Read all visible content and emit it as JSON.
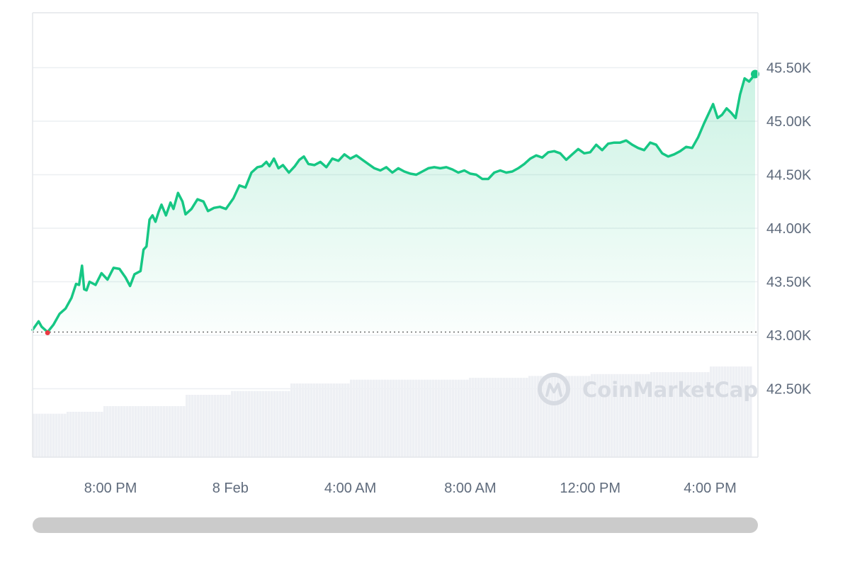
{
  "chart_data": {
    "type": "area",
    "ylim": [
      42000,
      46000
    ],
    "y_ticks": [
      {
        "value": 42500,
        "label": "42.50K"
      },
      {
        "value": 43000,
        "label": "43.00K"
      },
      {
        "value": 43500,
        "label": "43.50K"
      },
      {
        "value": 44000,
        "label": "44.00K"
      },
      {
        "value": 44500,
        "label": "44.50K"
      },
      {
        "value": 45000,
        "label": "45.00K"
      },
      {
        "value": 45500,
        "label": "45.50K"
      }
    ],
    "x_range_hours": [
      -6.6,
      17.5
    ],
    "x_ticks": [
      {
        "value": -4,
        "label": "8:00 PM"
      },
      {
        "value": 0,
        "label": "8 Feb"
      },
      {
        "value": 4,
        "label": "4:00 AM"
      },
      {
        "value": 8,
        "label": "8:00 AM"
      },
      {
        "value": 12,
        "label": "12:00 PM"
      },
      {
        "value": 16,
        "label": "4:00 PM"
      }
    ],
    "reference_value": 43030,
    "line_color": "#16c784",
    "below_reference_color": "#ea3943",
    "series": [
      {
        "x": -6.6,
        "y": 43050
      },
      {
        "x": -6.4,
        "y": 43130
      },
      {
        "x": -6.3,
        "y": 43080
      },
      {
        "x": -6.1,
        "y": 43030
      },
      {
        "x": -5.9,
        "y": 43100
      },
      {
        "x": -5.7,
        "y": 43200
      },
      {
        "x": -5.5,
        "y": 43250
      },
      {
        "x": -5.3,
        "y": 43350
      },
      {
        "x": -5.15,
        "y": 43480
      },
      {
        "x": -5.05,
        "y": 43470
      },
      {
        "x": -4.95,
        "y": 43650
      },
      {
        "x": -4.88,
        "y": 43430
      },
      {
        "x": -4.8,
        "y": 43420
      },
      {
        "x": -4.7,
        "y": 43500
      },
      {
        "x": -4.5,
        "y": 43470
      },
      {
        "x": -4.3,
        "y": 43580
      },
      {
        "x": -4.1,
        "y": 43520
      },
      {
        "x": -3.9,
        "y": 43630
      },
      {
        "x": -3.7,
        "y": 43620
      },
      {
        "x": -3.5,
        "y": 43540
      },
      {
        "x": -3.35,
        "y": 43460
      },
      {
        "x": -3.2,
        "y": 43570
      },
      {
        "x": -3.0,
        "y": 43600
      },
      {
        "x": -2.9,
        "y": 43800
      },
      {
        "x": -2.8,
        "y": 43830
      },
      {
        "x": -2.7,
        "y": 44080
      },
      {
        "x": -2.6,
        "y": 44120
      },
      {
        "x": -2.5,
        "y": 44060
      },
      {
        "x": -2.4,
        "y": 44150
      },
      {
        "x": -2.3,
        "y": 44220
      },
      {
        "x": -2.15,
        "y": 44120
      },
      {
        "x": -2.0,
        "y": 44240
      },
      {
        "x": -1.9,
        "y": 44180
      },
      {
        "x": -1.75,
        "y": 44330
      },
      {
        "x": -1.6,
        "y": 44250
      },
      {
        "x": -1.5,
        "y": 44130
      },
      {
        "x": -1.3,
        "y": 44180
      },
      {
        "x": -1.1,
        "y": 44270
      },
      {
        "x": -0.9,
        "y": 44250
      },
      {
        "x": -0.75,
        "y": 44160
      },
      {
        "x": -0.55,
        "y": 44190
      },
      {
        "x": -0.35,
        "y": 44200
      },
      {
        "x": -0.15,
        "y": 44180
      },
      {
        "x": 0.1,
        "y": 44280
      },
      {
        "x": 0.3,
        "y": 44400
      },
      {
        "x": 0.5,
        "y": 44380
      },
      {
        "x": 0.7,
        "y": 44520
      },
      {
        "x": 0.9,
        "y": 44570
      },
      {
        "x": 1.05,
        "y": 44580
      },
      {
        "x": 1.2,
        "y": 44620
      },
      {
        "x": 1.3,
        "y": 44580
      },
      {
        "x": 1.45,
        "y": 44650
      },
      {
        "x": 1.6,
        "y": 44560
      },
      {
        "x": 1.75,
        "y": 44590
      },
      {
        "x": 1.95,
        "y": 44520
      },
      {
        "x": 2.15,
        "y": 44580
      },
      {
        "x": 2.3,
        "y": 44640
      },
      {
        "x": 2.45,
        "y": 44670
      },
      {
        "x": 2.6,
        "y": 44600
      },
      {
        "x": 2.8,
        "y": 44590
      },
      {
        "x": 3.0,
        "y": 44620
      },
      {
        "x": 3.2,
        "y": 44570
      },
      {
        "x": 3.4,
        "y": 44650
      },
      {
        "x": 3.6,
        "y": 44630
      },
      {
        "x": 3.8,
        "y": 44690
      },
      {
        "x": 4.0,
        "y": 44650
      },
      {
        "x": 4.2,
        "y": 44680
      },
      {
        "x": 4.4,
        "y": 44640
      },
      {
        "x": 4.6,
        "y": 44600
      },
      {
        "x": 4.8,
        "y": 44560
      },
      {
        "x": 5.0,
        "y": 44540
      },
      {
        "x": 5.2,
        "y": 44570
      },
      {
        "x": 5.4,
        "y": 44520
      },
      {
        "x": 5.6,
        "y": 44560
      },
      {
        "x": 5.8,
        "y": 44530
      },
      {
        "x": 6.0,
        "y": 44510
      },
      {
        "x": 6.2,
        "y": 44500
      },
      {
        "x": 6.4,
        "y": 44530
      },
      {
        "x": 6.6,
        "y": 44560
      },
      {
        "x": 6.8,
        "y": 44570
      },
      {
        "x": 7.0,
        "y": 44560
      },
      {
        "x": 7.2,
        "y": 44570
      },
      {
        "x": 7.4,
        "y": 44550
      },
      {
        "x": 7.6,
        "y": 44520
      },
      {
        "x": 7.8,
        "y": 44540
      },
      {
        "x": 8.0,
        "y": 44510
      },
      {
        "x": 8.2,
        "y": 44500
      },
      {
        "x": 8.4,
        "y": 44460
      },
      {
        "x": 8.6,
        "y": 44460
      },
      {
        "x": 8.8,
        "y": 44520
      },
      {
        "x": 9.0,
        "y": 44540
      },
      {
        "x": 9.2,
        "y": 44520
      },
      {
        "x": 9.4,
        "y": 44530
      },
      {
        "x": 9.6,
        "y": 44560
      },
      {
        "x": 9.8,
        "y": 44600
      },
      {
        "x": 10.0,
        "y": 44650
      },
      {
        "x": 10.2,
        "y": 44680
      },
      {
        "x": 10.4,
        "y": 44660
      },
      {
        "x": 10.6,
        "y": 44710
      },
      {
        "x": 10.8,
        "y": 44720
      },
      {
        "x": 11.0,
        "y": 44700
      },
      {
        "x": 11.2,
        "y": 44640
      },
      {
        "x": 11.4,
        "y": 44690
      },
      {
        "x": 11.6,
        "y": 44740
      },
      {
        "x": 11.8,
        "y": 44700
      },
      {
        "x": 12.0,
        "y": 44710
      },
      {
        "x": 12.2,
        "y": 44780
      },
      {
        "x": 12.4,
        "y": 44730
      },
      {
        "x": 12.6,
        "y": 44790
      },
      {
        "x": 12.8,
        "y": 44800
      },
      {
        "x": 13.0,
        "y": 44800
      },
      {
        "x": 13.2,
        "y": 44820
      },
      {
        "x": 13.4,
        "y": 44780
      },
      {
        "x": 13.6,
        "y": 44750
      },
      {
        "x": 13.8,
        "y": 44730
      },
      {
        "x": 14.0,
        "y": 44800
      },
      {
        "x": 14.2,
        "y": 44780
      },
      {
        "x": 14.4,
        "y": 44700
      },
      {
        "x": 14.6,
        "y": 44670
      },
      {
        "x": 14.8,
        "y": 44690
      },
      {
        "x": 15.0,
        "y": 44720
      },
      {
        "x": 15.2,
        "y": 44760
      },
      {
        "x": 15.4,
        "y": 44750
      },
      {
        "x": 15.6,
        "y": 44850
      },
      {
        "x": 15.8,
        "y": 44980
      },
      {
        "x": 16.0,
        "y": 45100
      },
      {
        "x": 16.1,
        "y": 45160
      },
      {
        "x": 16.25,
        "y": 45030
      },
      {
        "x": 16.4,
        "y": 45060
      },
      {
        "x": 16.55,
        "y": 45120
      },
      {
        "x": 16.7,
        "y": 45080
      },
      {
        "x": 16.85,
        "y": 45030
      },
      {
        "x": 17.0,
        "y": 45250
      },
      {
        "x": 17.15,
        "y": 45400
      },
      {
        "x": 17.3,
        "y": 45370
      },
      {
        "x": 17.5,
        "y": 45440
      }
    ],
    "volume": [
      {
        "x": -6.6,
        "v": 0.23
      },
      {
        "x": -5.5,
        "v": 0.24
      },
      {
        "x": -4.3,
        "v": 0.27
      },
      {
        "x": -3.0,
        "v": 0.27
      },
      {
        "x": -1.5,
        "v": 0.33
      },
      {
        "x": 0.0,
        "v": 0.35
      },
      {
        "x": 2.0,
        "v": 0.39
      },
      {
        "x": 4.0,
        "v": 0.41
      },
      {
        "x": 8.0,
        "v": 0.42
      },
      {
        "x": 10.0,
        "v": 0.43
      },
      {
        "x": 12.0,
        "v": 0.44
      },
      {
        "x": 14.0,
        "v": 0.45
      },
      {
        "x": 16.0,
        "v": 0.48
      },
      {
        "x": 17.5,
        "v": 0.51
      }
    ],
    "watermark": "CoinMarketCap"
  }
}
